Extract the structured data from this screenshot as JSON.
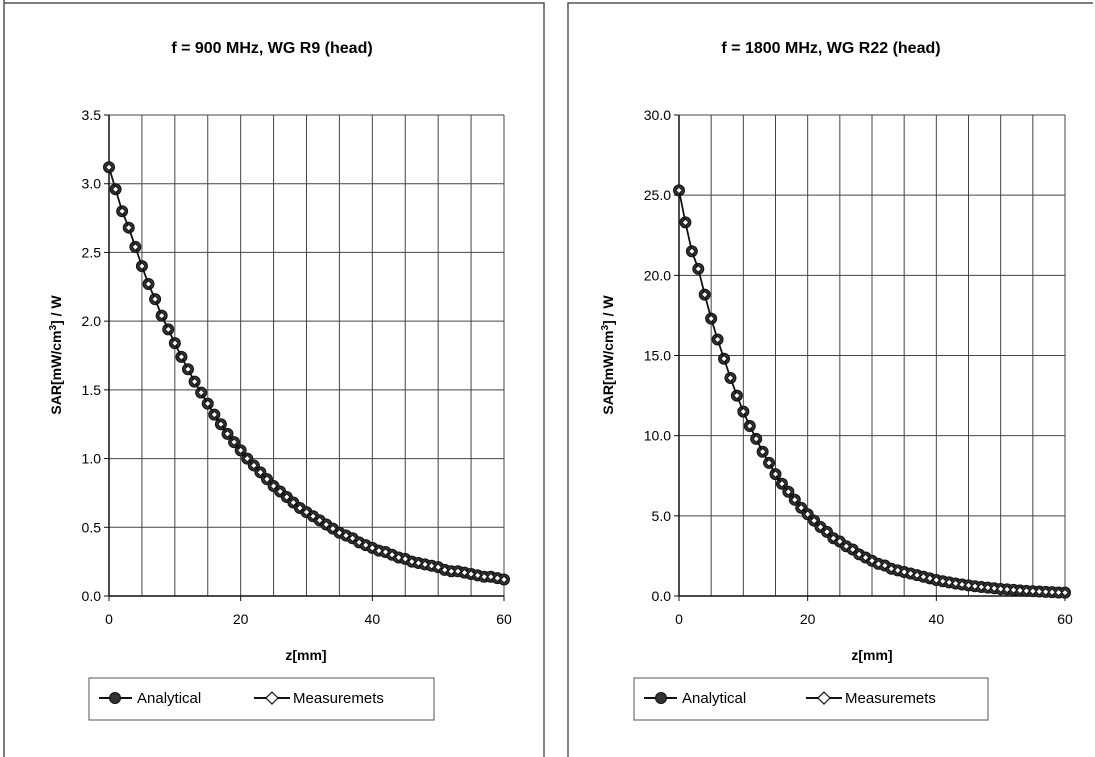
{
  "chart_data": [
    {
      "type": "line",
      "title": "f = 900 MHz, WG R9 (head)",
      "xlabel": "z[mm]",
      "ylabel": "SAR[mW/cm3] / W",
      "xlim": [
        0,
        60
      ],
      "ylim": [
        0,
        3.5
      ],
      "x_ticks": [
        "0",
        "20",
        "40",
        "60"
      ],
      "y_ticks": [
        "0.0",
        "0.5",
        "1.0",
        "1.5",
        "2.0",
        "2.5",
        "3.0",
        "3.5"
      ],
      "grid": true,
      "legend_position": "bottom",
      "x": [
        0,
        1,
        2,
        3,
        4,
        5,
        6,
        7,
        8,
        9,
        10,
        11,
        12,
        13,
        14,
        15,
        16,
        17,
        18,
        19,
        20,
        21,
        22,
        23,
        24,
        25,
        26,
        27,
        28,
        29,
        30,
        31,
        32,
        33,
        34,
        35,
        36,
        37,
        38,
        39,
        40,
        41,
        42,
        43,
        44,
        45,
        46,
        47,
        48,
        49,
        50,
        51,
        52,
        53,
        54,
        55,
        56,
        57,
        58,
        59,
        60
      ],
      "series": [
        {
          "name": "Analytical",
          "marker": "circle",
          "values": [
            3.12,
            2.96,
            2.8,
            2.68,
            2.54,
            2.4,
            2.27,
            2.16,
            2.04,
            1.94,
            1.84,
            1.74,
            1.65,
            1.56,
            1.48,
            1.4,
            1.32,
            1.25,
            1.18,
            1.12,
            1.06,
            1.0,
            0.95,
            0.9,
            0.85,
            0.8,
            0.76,
            0.72,
            0.68,
            0.64,
            0.61,
            0.58,
            0.55,
            0.52,
            0.49,
            0.46,
            0.44,
            0.42,
            0.39,
            0.37,
            0.35,
            0.33,
            0.32,
            0.3,
            0.28,
            0.27,
            0.25,
            0.24,
            0.23,
            0.22,
            0.21,
            0.19,
            0.18,
            0.18,
            0.17,
            0.16,
            0.15,
            0.14,
            0.14,
            0.13,
            0.12
          ]
        },
        {
          "name": "Measuremets",
          "marker": "diamond",
          "values": [
            3.12,
            2.96,
            2.8,
            2.68,
            2.54,
            2.4,
            2.27,
            2.16,
            2.04,
            1.94,
            1.84,
            1.74,
            1.65,
            1.56,
            1.48,
            1.4,
            1.32,
            1.25,
            1.18,
            1.12,
            1.06,
            1.0,
            0.95,
            0.9,
            0.85,
            0.8,
            0.76,
            0.72,
            0.68,
            0.64,
            0.61,
            0.58,
            0.55,
            0.52,
            0.49,
            0.46,
            0.44,
            0.42,
            0.39,
            0.37,
            0.35,
            0.33,
            0.32,
            0.3,
            0.28,
            0.27,
            0.25,
            0.24,
            0.23,
            0.22,
            0.21,
            0.19,
            0.18,
            0.18,
            0.17,
            0.16,
            0.15,
            0.14,
            0.14,
            0.13,
            0.12
          ]
        }
      ]
    },
    {
      "type": "line",
      "title": "f = 1800 MHz, WG R22 (head)",
      "xlabel": "z[mm]",
      "ylabel": "SAR[mW/cm3] / W",
      "xlim": [
        0,
        60
      ],
      "ylim": [
        0,
        30
      ],
      "x_ticks": [
        "0",
        "20",
        "40",
        "60"
      ],
      "y_ticks": [
        "0.0",
        "5.0",
        "10.0",
        "15.0",
        "20.0",
        "25.0",
        "30.0"
      ],
      "grid": true,
      "legend_position": "bottom",
      "x": [
        0,
        1,
        2,
        3,
        4,
        5,
        6,
        7,
        8,
        9,
        10,
        11,
        12,
        13,
        14,
        15,
        16,
        17,
        18,
        19,
        20,
        21,
        22,
        23,
        24,
        25,
        26,
        27,
        28,
        29,
        30,
        31,
        32,
        33,
        34,
        35,
        36,
        37,
        38,
        39,
        40,
        41,
        42,
        43,
        44,
        45,
        46,
        47,
        48,
        49,
        50,
        51,
        52,
        53,
        54,
        55,
        56,
        57,
        58,
        59,
        60
      ],
      "series": [
        {
          "name": "Analytical",
          "marker": "circle",
          "values": [
            25.3,
            23.3,
            21.5,
            20.4,
            18.8,
            17.3,
            16.0,
            14.8,
            13.6,
            12.5,
            11.5,
            10.6,
            9.8,
            9.0,
            8.3,
            7.6,
            7.0,
            6.5,
            6.0,
            5.5,
            5.1,
            4.7,
            4.3,
            4.0,
            3.6,
            3.4,
            3.1,
            2.9,
            2.6,
            2.4,
            2.2,
            2.0,
            1.9,
            1.7,
            1.6,
            1.5,
            1.4,
            1.3,
            1.2,
            1.1,
            1.0,
            0.92,
            0.85,
            0.78,
            0.72,
            0.66,
            0.61,
            0.56,
            0.52,
            0.48,
            0.44,
            0.41,
            0.38,
            0.35,
            0.32,
            0.3,
            0.28,
            0.26,
            0.24,
            0.22,
            0.21
          ]
        },
        {
          "name": "Measuremets",
          "marker": "diamond",
          "values": [
            25.3,
            23.3,
            21.5,
            20.4,
            18.8,
            17.3,
            16.0,
            14.8,
            13.6,
            12.5,
            11.5,
            10.6,
            9.8,
            9.0,
            8.3,
            7.6,
            7.0,
            6.5,
            6.0,
            5.5,
            5.1,
            4.7,
            4.3,
            4.0,
            3.6,
            3.4,
            3.1,
            2.9,
            2.6,
            2.4,
            2.2,
            2.0,
            1.9,
            1.7,
            1.6,
            1.5,
            1.4,
            1.3,
            1.2,
            1.1,
            1.0,
            0.92,
            0.85,
            0.78,
            0.72,
            0.66,
            0.61,
            0.56,
            0.52,
            0.48,
            0.44,
            0.41,
            0.38,
            0.35,
            0.32,
            0.3,
            0.28,
            0.26,
            0.24,
            0.22,
            0.21
          ]
        }
      ]
    }
  ]
}
